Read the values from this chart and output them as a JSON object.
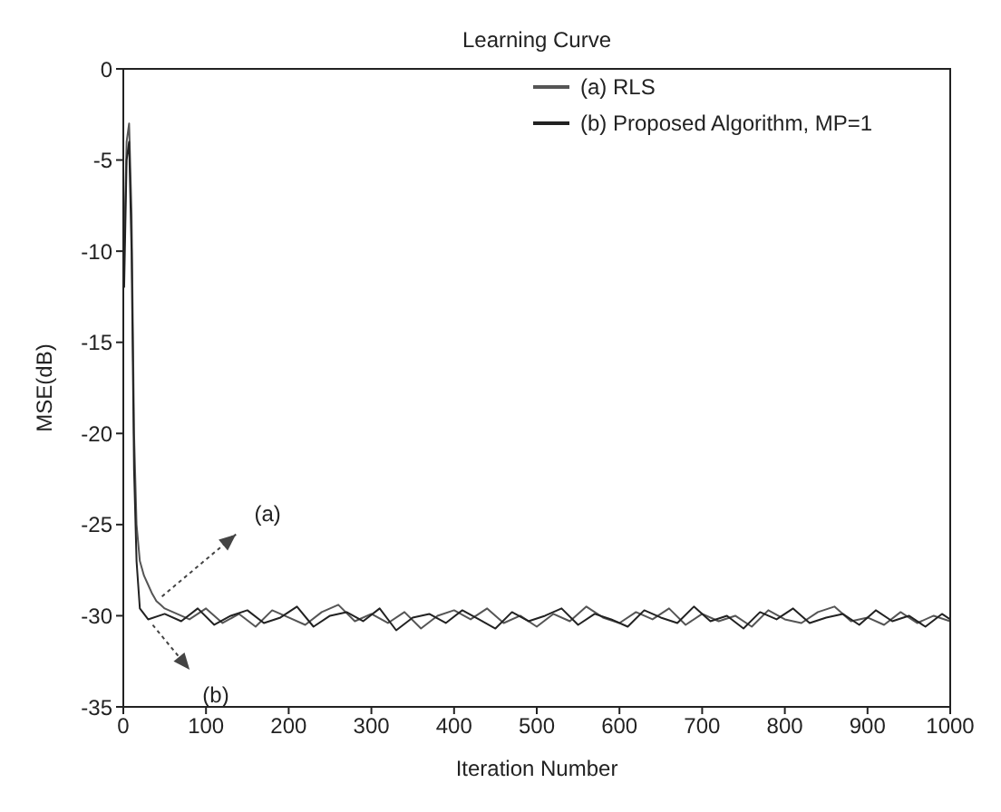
{
  "chart_data": {
    "type": "line",
    "title": "Learning Curve",
    "xlabel": "Iteration Number",
    "ylabel": "MSE(dB)",
    "xlim": [
      0,
      1000
    ],
    "xticks": [
      0,
      100,
      200,
      300,
      400,
      500,
      600,
      700,
      800,
      900,
      1000
    ],
    "ylim": [
      -35,
      0
    ],
    "yticks": [
      -35,
      -30,
      -25,
      -20,
      -15,
      -10,
      -5,
      0
    ],
    "grid": false,
    "legend": "top right",
    "marker": "none",
    "line_style": "solid",
    "annotations": [
      {
        "text": "(a)",
        "x": 40,
        "y": -29.2
      },
      {
        "text": "(b)",
        "x": 30,
        "y": -30.2
      }
    ],
    "series": [
      {
        "name": "(a) RLS",
        "color": "#555555",
        "x": [
          1,
          4,
          7,
          10,
          13,
          16,
          20,
          25,
          30,
          35,
          40,
          45,
          50,
          60,
          80,
          100,
          120,
          140,
          160,
          180,
          200,
          220,
          240,
          260,
          280,
          300,
          320,
          340,
          360,
          380,
          400,
          420,
          440,
          460,
          480,
          500,
          520,
          540,
          560,
          580,
          600,
          620,
          640,
          660,
          680,
          700,
          720,
          740,
          760,
          780,
          800,
          820,
          840,
          860,
          880,
          900,
          920,
          940,
          960,
          980,
          1000
        ],
        "values": [
          -10,
          -4,
          -3,
          -8,
          -20,
          -25,
          -27,
          -27.8,
          -28.3,
          -28.8,
          -29.2,
          -29.4,
          -29.6,
          -29.8,
          -30.2,
          -29.6,
          -30.4,
          -29.9,
          -30.6,
          -29.7,
          -30.1,
          -30.5,
          -29.8,
          -29.4,
          -30.3,
          -29.9,
          -30.4,
          -29.8,
          -30.7,
          -30.0,
          -29.7,
          -30.2,
          -29.6,
          -30.4,
          -30.0,
          -30.6,
          -29.9,
          -30.3,
          -29.5,
          -30.1,
          -30.4,
          -29.8,
          -30.2,
          -29.6,
          -30.5,
          -29.9,
          -30.3,
          -30.0,
          -30.6,
          -29.7,
          -30.2,
          -30.4,
          -29.8,
          -29.5,
          -30.3,
          -30.1,
          -30.5,
          -29.8,
          -30.4,
          -30.0,
          -30.3
        ]
      },
      {
        "name": "(b) Proposed Algorithm, MP=1",
        "color": "#222222",
        "x": [
          1,
          4,
          7,
          10,
          13,
          16,
          20,
          25,
          30,
          50,
          70,
          90,
          110,
          130,
          150,
          170,
          190,
          210,
          230,
          250,
          270,
          290,
          310,
          330,
          350,
          370,
          390,
          410,
          430,
          450,
          470,
          490,
          510,
          530,
          550,
          570,
          590,
          610,
          630,
          650,
          670,
          690,
          710,
          730,
          750,
          770,
          790,
          810,
          830,
          850,
          870,
          890,
          910,
          930,
          950,
          970,
          990,
          1000
        ],
        "values": [
          -12,
          -5,
          -4,
          -10,
          -22,
          -27,
          -29.6,
          -29.9,
          -30.2,
          -29.9,
          -30.3,
          -29.6,
          -30.5,
          -30.0,
          -29.7,
          -30.4,
          -30.1,
          -29.5,
          -30.6,
          -30.0,
          -29.8,
          -30.3,
          -29.6,
          -30.8,
          -30.1,
          -29.9,
          -30.4,
          -29.7,
          -30.2,
          -30.7,
          -29.8,
          -30.3,
          -30.0,
          -29.6,
          -30.5,
          -29.9,
          -30.2,
          -30.6,
          -29.7,
          -30.1,
          -30.4,
          -29.5,
          -30.3,
          -30.0,
          -30.7,
          -29.8,
          -30.2,
          -29.6,
          -30.4,
          -30.1,
          -29.9,
          -30.5,
          -29.7,
          -30.3,
          -30.0,
          -30.6,
          -29.9,
          -30.2
        ]
      }
    ]
  }
}
